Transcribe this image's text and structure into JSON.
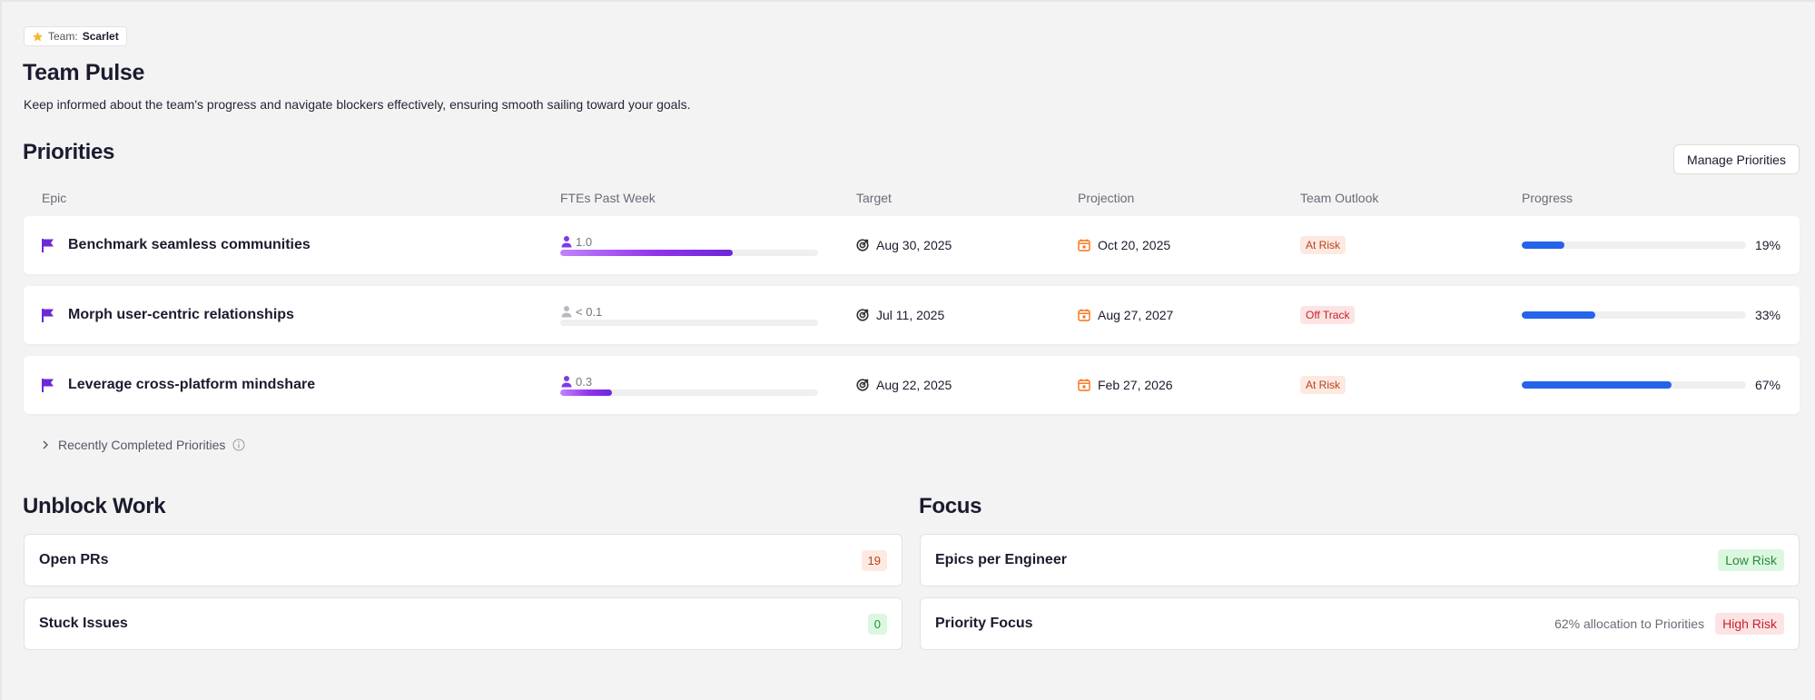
{
  "team": {
    "label": "Team:",
    "name": "Scarlet"
  },
  "header": {
    "title": "Team Pulse",
    "subtitle": "Keep informed about the team's progress and navigate blockers effectively, ensuring smooth sailing toward your goals."
  },
  "priorities": {
    "title": "Priorities",
    "manage_label": "Manage Priorities",
    "columns": [
      "Epic",
      "FTEs Past Week",
      "Target",
      "Projection",
      "Team Outlook",
      "Progress"
    ],
    "rows": [
      {
        "epic": "Benchmark seamless communities",
        "fte": "1.0",
        "fte_fraction": 0.67,
        "fte_active": true,
        "target": "Aug 30, 2025",
        "projection": "Oct 20, 2025",
        "outlook": "At Risk",
        "outlook_tone": "orange",
        "progress_label": "19%",
        "progress": 0.19
      },
      {
        "epic": "Morph user-centric relationships",
        "fte": "< 0.1",
        "fte_fraction": 0.0,
        "fte_active": false,
        "target": "Jul 11, 2025",
        "projection": "Aug 27, 2027",
        "outlook": "Off Track",
        "outlook_tone": "red",
        "progress_label": "33%",
        "progress": 0.33
      },
      {
        "epic": "Leverage cross-platform mindshare",
        "fte": "0.3",
        "fte_fraction": 0.2,
        "fte_active": true,
        "target": "Aug 22, 2025",
        "projection": "Feb 27, 2026",
        "outlook": "At Risk",
        "outlook_tone": "orange",
        "progress_label": "67%",
        "progress": 0.67
      }
    ],
    "recent_label": "Recently Completed Priorities"
  },
  "unblock": {
    "title": "Unblock Work",
    "items": [
      {
        "label": "Open PRs",
        "count": "19",
        "tone": "orange"
      },
      {
        "label": "Stuck Issues",
        "count": "0",
        "tone": "green"
      }
    ]
  },
  "focus": {
    "title": "Focus",
    "items": [
      {
        "label": "Epics per Engineer",
        "note": "",
        "risk": "Low Risk",
        "tone": "green"
      },
      {
        "label": "Priority Focus",
        "note": "62% allocation to Priorities",
        "risk": "High Risk",
        "tone": "red"
      }
    ]
  },
  "colors": {
    "progress": "#2563eb",
    "fte_gradient_start": "#c084fc",
    "fte_gradient_end": "#6d28d9",
    "flag": "#6d28d9",
    "target_icon": "#333333",
    "projection_icon": "#f97316"
  },
  "icons": {
    "team": "star-icon",
    "epic": "flag-icon",
    "fte": "person-icon",
    "target": "target-icon",
    "projection": "calendar-icon",
    "recent_toggle": "chevron-right-icon",
    "recent_info": "info-icon"
  }
}
